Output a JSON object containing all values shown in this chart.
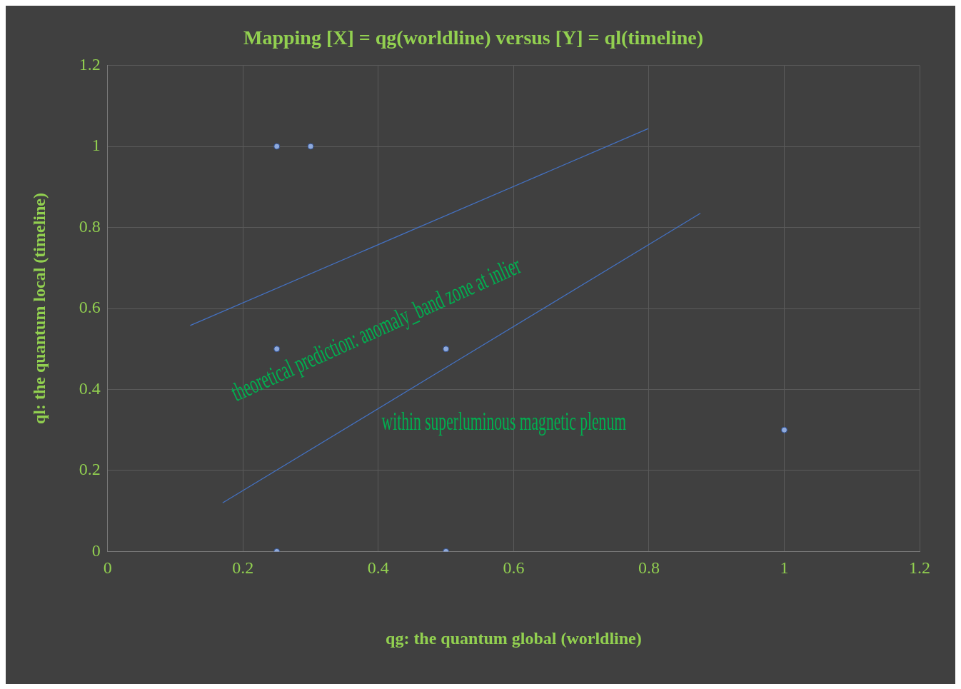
{
  "chart_data": {
    "type": "scatter",
    "title": "Mapping [X] = qg(worldline) versus [Y] = ql(timeline)",
    "xlabel": "qg: the quantum global (worldline)",
    "ylabel": "ql: the quantum local (timeline)",
    "series": [
      {
        "color": "#8faadc",
        "x": [
          0.25,
          0.3,
          0.25,
          0.5,
          1,
          0.25,
          0.5
        ],
        "values": [
          1,
          1,
          0.5,
          0.5,
          0.3,
          0,
          0
        ]
      },
      {
        "type": "line",
        "color": "#4472c4",
        "x": [
          0.122,
          0.799
        ],
        "values": [
          0.558,
          1.044
        ],
        "marker": "none"
      },
      {
        "type": "line",
        "color": "#4472c4",
        "x": [
          0.17,
          0.876
        ],
        "values": [
          0.12,
          0.835
        ],
        "marker": "none"
      }
    ],
    "xlim": [
      0,
      1.2
    ],
    "xticks": [
      0,
      0.2,
      0.4,
      0.6,
      0.8,
      1,
      1.2
    ],
    "ylim": [
      0,
      1.2
    ],
    "yticks": [
      0,
      0.2,
      0.4,
      0.6,
      0.8,
      1,
      1.2
    ],
    "grid": true,
    "marker": "circle",
    "line_style": "solid",
    "annotations": [
      "theoretical prediction: anomaly_band zone at inlier",
      "within superluminous magnetic plenum"
    ]
  }
}
